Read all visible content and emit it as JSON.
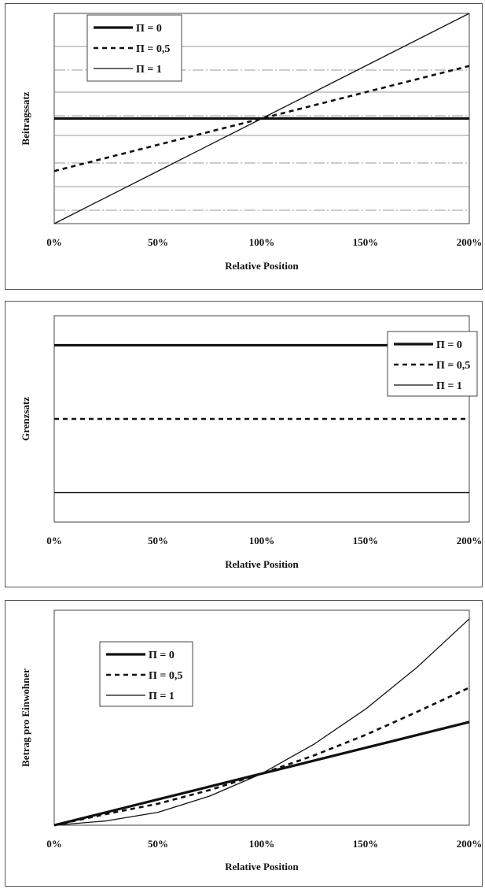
{
  "colors": {
    "line": "#111111",
    "grid": "#777777",
    "frame": "#444444"
  },
  "chart_data": [
    {
      "type": "line",
      "title": "",
      "xlabel": "Relative Position",
      "ylabel": "Beitragssatz",
      "x": [
        0,
        50,
        100,
        150,
        200
      ],
      "x_tick_labels": [
        "0%",
        "50%",
        "100%",
        "150%",
        "200%"
      ],
      "ylim": [
        0,
        1.2
      ],
      "grid": true,
      "legend": "top-left",
      "series": [
        {
          "name": "Π = 0",
          "style": "thick",
          "values": [
            0.6,
            0.6,
            0.6,
            0.6,
            0.6
          ]
        },
        {
          "name": "Π = 0,5",
          "style": "dashed",
          "values": [
            0.3,
            0.45,
            0.6,
            0.75,
            0.9
          ]
        },
        {
          "name": "Π = 1",
          "style": "thin",
          "values": [
            0.0,
            0.3,
            0.6,
            0.9,
            1.2
          ]
        }
      ]
    },
    {
      "type": "line",
      "title": "",
      "xlabel": "Relative Position",
      "ylabel": "Grenzsatz",
      "x": [
        0,
        50,
        100,
        150,
        200
      ],
      "x_tick_labels": [
        "0%",
        "50%",
        "100%",
        "150%",
        "200%"
      ],
      "ylim": [
        0,
        1.4
      ],
      "grid": false,
      "legend": "top-right",
      "series": [
        {
          "name": "Π = 0",
          "style": "thick",
          "values": [
            1.2,
            1.2,
            1.2,
            1.2,
            1.2
          ]
        },
        {
          "name": "Π = 0,5",
          "style": "dashed",
          "values": [
            0.7,
            0.7,
            0.7,
            0.7,
            0.7
          ]
        },
        {
          "name": "Π = 1",
          "style": "thin",
          "values": [
            0.2,
            0.2,
            0.2,
            0.2,
            0.2
          ]
        }
      ]
    },
    {
      "type": "line",
      "title": "",
      "xlabel": "Relative Position",
      "ylabel": "Betrag pro Einwohner",
      "x": [
        0,
        25,
        50,
        75,
        100,
        125,
        150,
        175,
        200
      ],
      "x_tick_labels": [
        "0%",
        "50%",
        "100%",
        "150%",
        "200%"
      ],
      "ylim": [
        0,
        2.5
      ],
      "grid": false,
      "legend": "top-left",
      "series": [
        {
          "name": "Π = 0",
          "style": "thick",
          "values": [
            0.0,
            0.15,
            0.3,
            0.45,
            0.6,
            0.75,
            0.9,
            1.05,
            1.2
          ]
        },
        {
          "name": "Π = 0,5",
          "style": "dashed",
          "values": [
            0.0,
            0.13,
            0.25,
            0.41,
            0.6,
            0.81,
            1.05,
            1.32,
            1.6
          ]
        },
        {
          "name": "Π = 1",
          "style": "thin",
          "values": [
            0.0,
            0.05,
            0.15,
            0.34,
            0.6,
            0.94,
            1.35,
            1.84,
            2.4
          ]
        }
      ]
    }
  ]
}
